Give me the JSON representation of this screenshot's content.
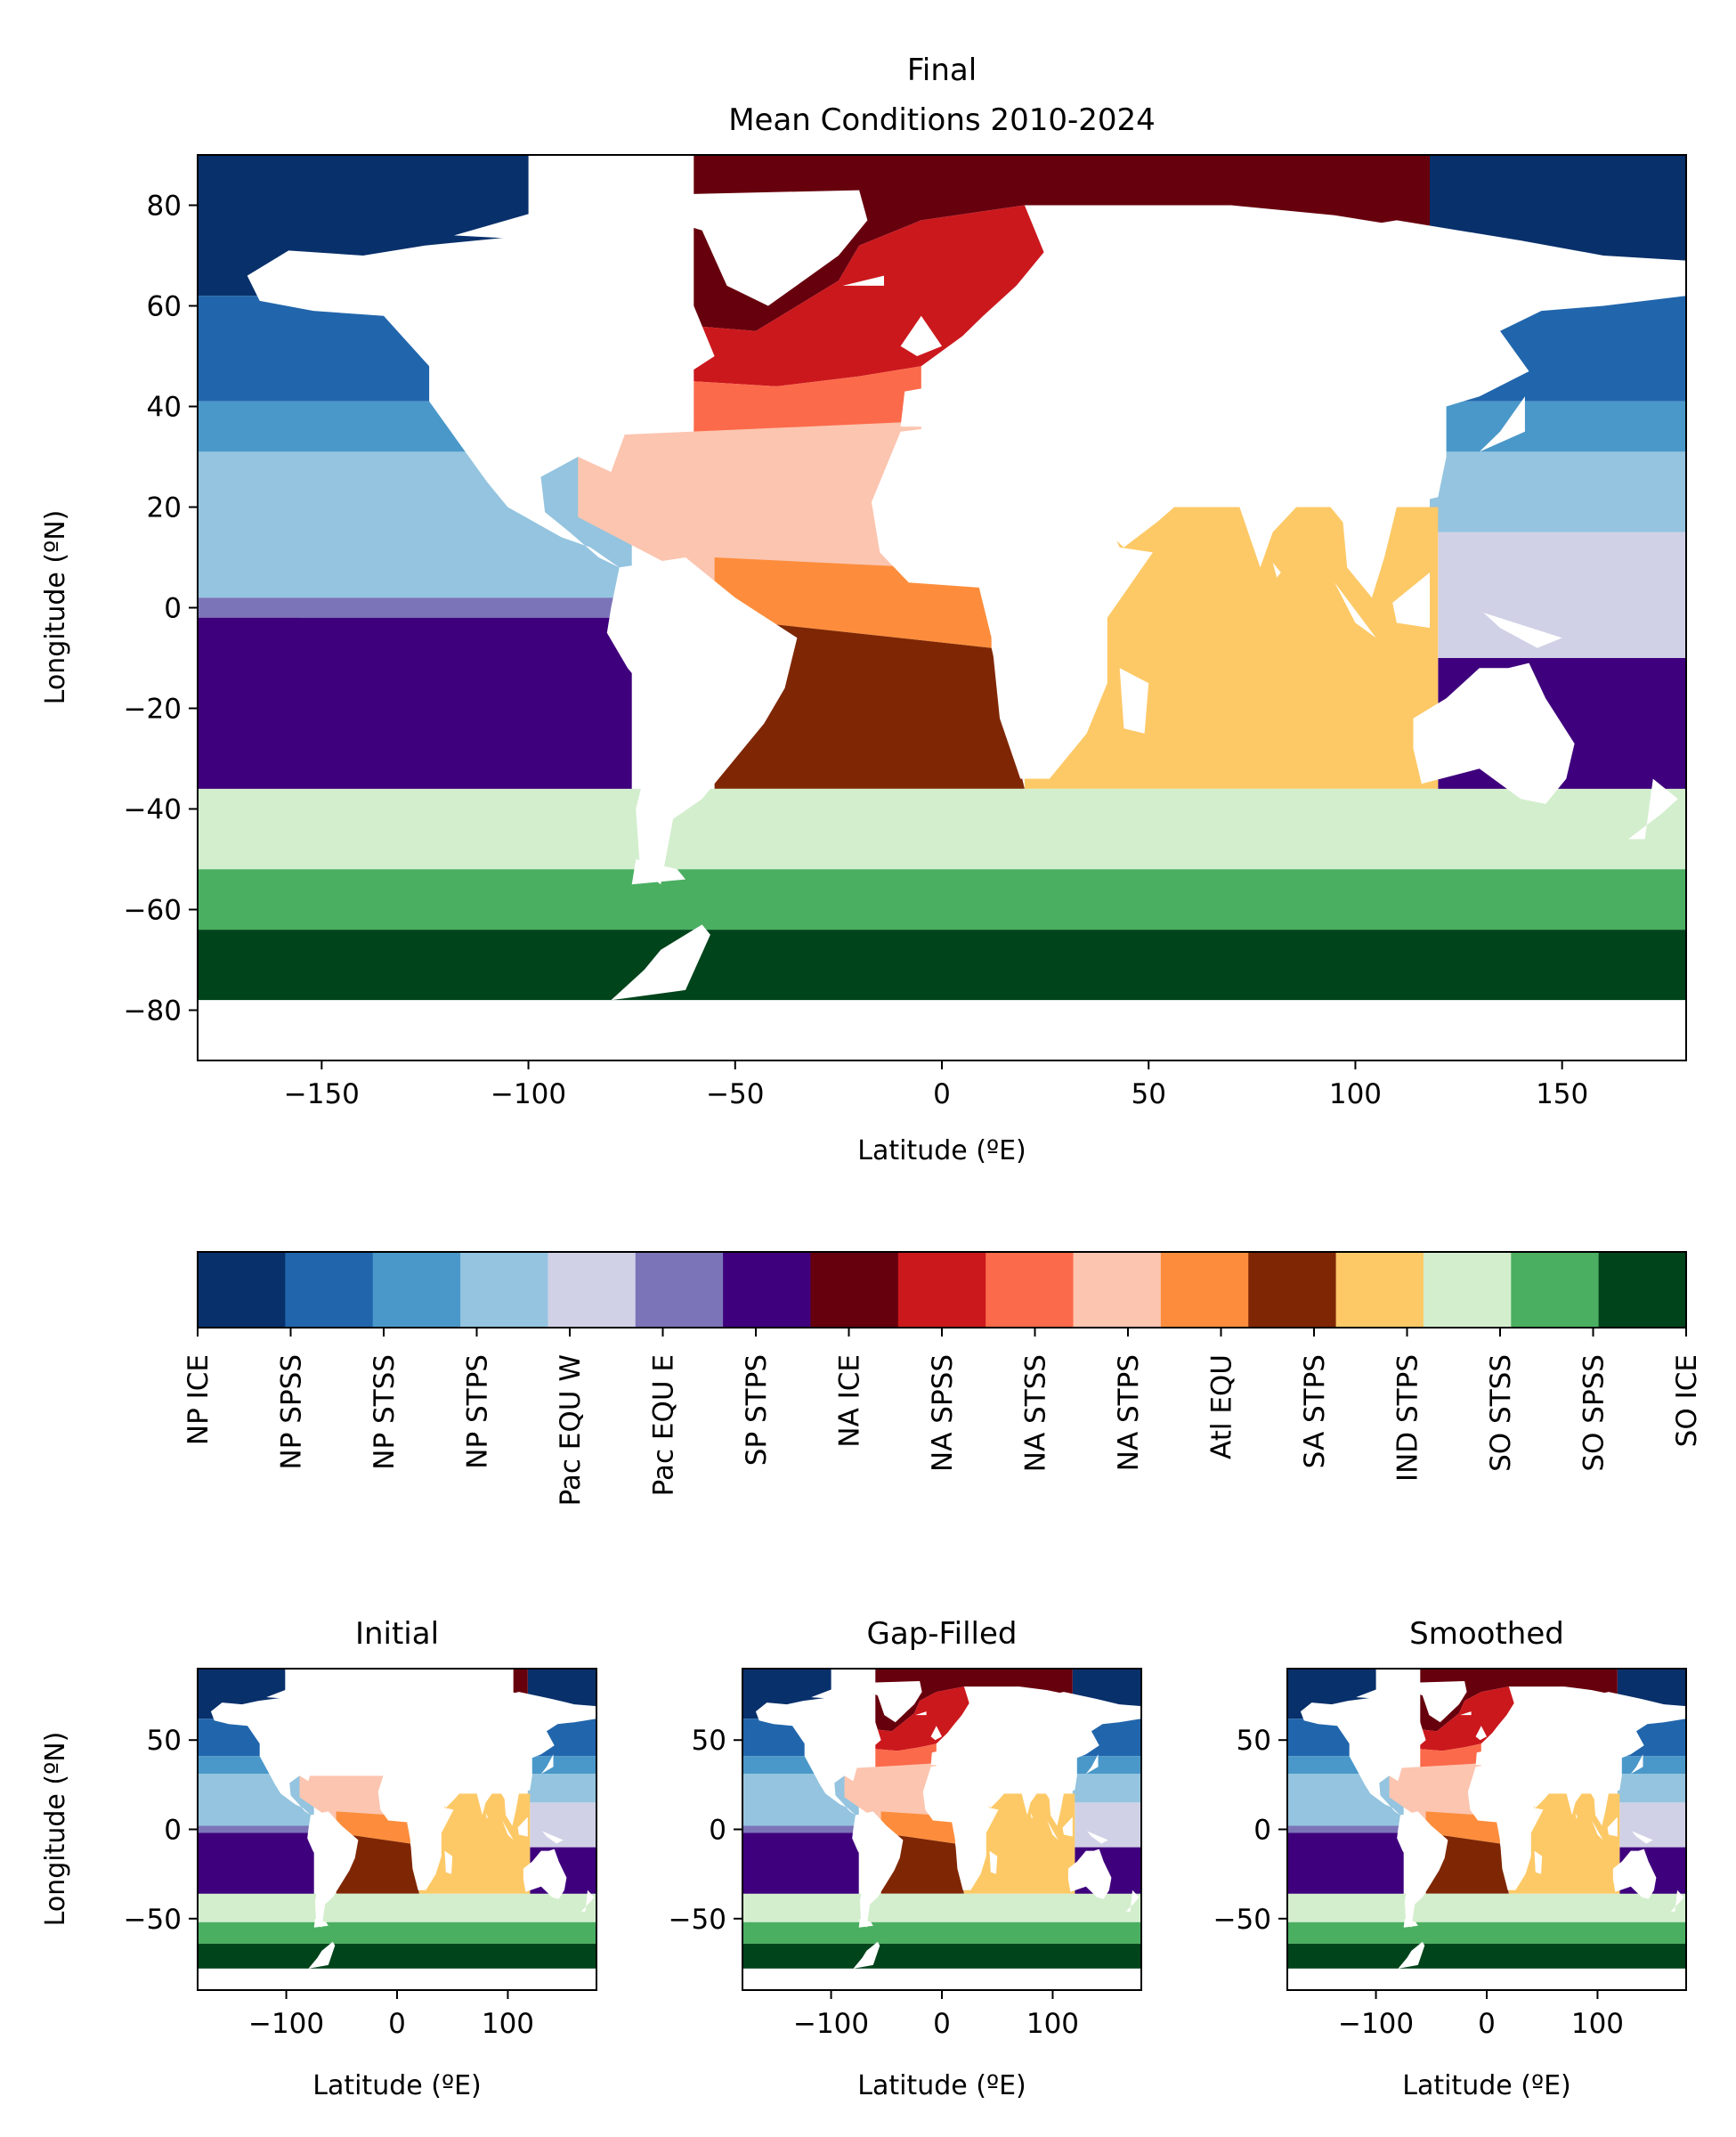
{
  "figure": {
    "title_line1": "Final",
    "title_line2": "Mean Conditions 2010-2024"
  },
  "colors": {
    "NP ICE": "#08306b",
    "NP SPSS": "#2166ac",
    "NP STSS": "#4a98c9",
    "NP STPS": "#94c4df",
    "Pac EQU W": "#d0d1e6",
    "Pac EQU E": "#7b74b8",
    "SP STPS": "#3f007d",
    "NA ICE": "#67000d",
    "NA SPSS": "#cb181d",
    "NA STSS": "#fb6a4a",
    "NA STPS": "#fcc5b0",
    "Atl EQU": "#fd8d3c",
    "SA STPS": "#7f2704",
    "IND STPS": "#fdc967",
    "SO STSS": "#d3eecd",
    "SO SPSS": "#4aaf61",
    "SO ICE": "#00441b"
  },
  "chart_data": [
    {
      "type": "heatmap",
      "panel": "main",
      "title": "Final\nMean Conditions 2010-2024",
      "xlabel": "Latitude (ºE)",
      "ylabel": "Longitude (ºN)",
      "xlim": [
        -180,
        180
      ],
      "ylim": [
        -90,
        90
      ],
      "xticks": [
        -150,
        -100,
        -50,
        0,
        50,
        100,
        150
      ],
      "xtick_labels": [
        "−150",
        "−100",
        "−50",
        "0",
        "50",
        "100",
        "150"
      ],
      "yticks": [
        80,
        60,
        40,
        20,
        0,
        -20,
        -40,
        -60,
        -80
      ],
      "ytick_labels": [
        "80",
        "60",
        "40",
        "20",
        "0",
        "−20",
        "−40",
        "−60",
        "−80"
      ],
      "grid": false,
      "regions": [
        "NP ICE",
        "NP SPSS",
        "NP STSS",
        "NP STPS",
        "Pac EQU W",
        "Pac EQU E",
        "SP STPS",
        "NA ICE",
        "NA SPSS",
        "NA STSS",
        "NA STPS",
        "Atl EQU",
        "SA STPS",
        "IND STPS",
        "SO STSS",
        "SO SPSS",
        "SO ICE"
      ]
    },
    {
      "type": "heatmap",
      "panel": "colorbar",
      "orientation": "horizontal",
      "categories": [
        "NP ICE",
        "NP SPSS",
        "NP STSS",
        "NP STPS",
        "Pac EQU W",
        "Pac EQU E",
        "SP STPS",
        "NA ICE",
        "NA SPSS",
        "NA STSS",
        "NA STPS",
        "Atl EQU",
        "SA STPS",
        "IND STPS",
        "SO STSS",
        "SO SPSS",
        "SO ICE"
      ]
    },
    {
      "type": "heatmap",
      "panel": "small-initial",
      "title": "Initial",
      "xlabel": "Latitude (ºE)",
      "ylabel": "Longitude (ºN)",
      "xlim": [
        -180,
        180
      ],
      "ylim": [
        -90,
        90
      ],
      "xticks": [
        -100,
        0,
        100
      ],
      "xtick_labels": [
        "−100",
        "0",
        "100"
      ],
      "yticks": [
        50,
        0,
        -50
      ],
      "ytick_labels": [
        "50",
        "0",
        "−50"
      ]
    },
    {
      "type": "heatmap",
      "panel": "small-gapfilled",
      "title": "Gap-Filled",
      "xlabel": "Latitude (ºE)",
      "xlim": [
        -180,
        180
      ],
      "ylim": [
        -90,
        90
      ],
      "xticks": [
        -100,
        0,
        100
      ],
      "xtick_labels": [
        "−100",
        "0",
        "100"
      ],
      "yticks": [
        50,
        0,
        -50
      ],
      "ytick_labels": [
        "50",
        "0",
        "−50"
      ]
    },
    {
      "type": "heatmap",
      "panel": "small-smoothed",
      "title": "Smoothed",
      "xlabel": "Latitude (ºE)",
      "xlim": [
        -180,
        180
      ],
      "ylim": [
        -90,
        90
      ],
      "xticks": [
        -100,
        0,
        100
      ],
      "xtick_labels": [
        "−100",
        "0",
        "100"
      ],
      "yticks": [
        50,
        0,
        -50
      ],
      "ytick_labels": [
        "50",
        "0",
        "−50"
      ]
    }
  ]
}
